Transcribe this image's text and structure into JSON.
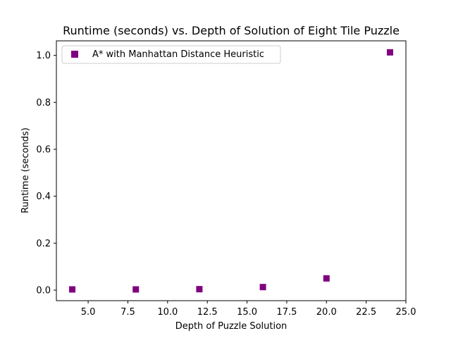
{
  "chart_data": {
    "type": "scatter",
    "title": "Runtime (seconds) vs. Depth of Solution of Eight Tile Puzzle",
    "xlabel": "Depth of Puzzle Solution",
    "ylabel": "Runtime (seconds)",
    "xlim": [
      3.0,
      25.0
    ],
    "ylim": [
      -0.045,
      1.062
    ],
    "xticks": [
      5.0,
      7.5,
      10.0,
      12.5,
      15.0,
      17.5,
      20.0,
      22.5,
      25.0
    ],
    "xtick_labels": [
      "5.0",
      "7.5",
      "10.0",
      "12.5",
      "15.0",
      "17.5",
      "20.0",
      "22.5",
      "25.0"
    ],
    "yticks": [
      0.0,
      0.2,
      0.4,
      0.6,
      0.8,
      1.0
    ],
    "ytick_labels": [
      "0.0",
      "0.2",
      "0.4",
      "0.6",
      "0.8",
      "1.0"
    ],
    "grid": false,
    "legend_position": "top-left",
    "series": [
      {
        "name": "A* with Manhattan Distance Heuristic",
        "marker": "square",
        "color": "#800080",
        "x": [
          4,
          8,
          12,
          16,
          20,
          24
        ],
        "y": [
          0.003,
          0.003,
          0.004,
          0.013,
          0.05,
          1.013
        ]
      }
    ]
  }
}
